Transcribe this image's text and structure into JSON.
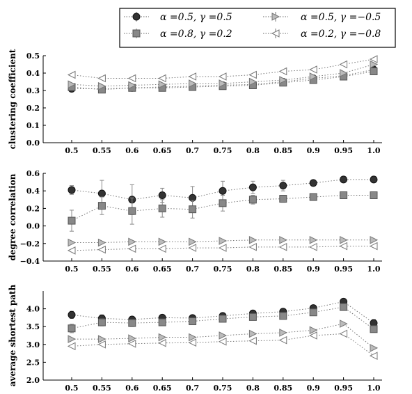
{
  "legend": {
    "entries": [
      {
        "label": "α =0.5,  γ =0.5",
        "series": 0
      },
      {
        "label": "α =0.5,  γ =−0.5",
        "series": 2
      },
      {
        "label": "α =0.8,  γ =0.2",
        "series": 1
      },
      {
        "label": "α =0.2,  γ =−0.8",
        "series": 3
      }
    ]
  },
  "series_styles": [
    {
      "marker": "circle",
      "fill": "#333333",
      "stroke": "#111111"
    },
    {
      "marker": "square",
      "fill": "#888888",
      "stroke": "#555555"
    },
    {
      "marker": "triangle-right",
      "fill": "#bbbbbb",
      "stroke": "#777777"
    },
    {
      "marker": "triangle-left",
      "fill": "#ffffff",
      "stroke": "#777777"
    }
  ],
  "chart_data": [
    {
      "type": "line",
      "ylabel": "clustering coefficient",
      "x": [
        0.5,
        0.55,
        0.6,
        0.65,
        0.7,
        0.75,
        0.8,
        0.85,
        0.9,
        0.95,
        1.0
      ],
      "x_tick_labels": [
        "0.5",
        "0.55",
        "0.6",
        "0.65",
        "0.7",
        "0.75",
        "0.8",
        "0.85",
        "0.9",
        "0.95",
        "1.0"
      ],
      "xlim": [
        0.5,
        1.0
      ],
      "ylim": [
        0.0,
        0.5
      ],
      "y_ticks": [
        0.0,
        0.1,
        0.2,
        0.3,
        0.4,
        0.5
      ],
      "y_tick_labels": [
        "0.0",
        "0.1",
        "0.2",
        "0.3",
        "0.4",
        "0.5"
      ],
      "grid": false,
      "series": [
        {
          "values": [
            0.31,
            0.31,
            0.315,
            0.32,
            0.325,
            0.33,
            0.335,
            0.35,
            0.37,
            0.385,
            0.42
          ],
          "errors": []
        },
        {
          "values": [
            0.32,
            0.305,
            0.315,
            0.315,
            0.32,
            0.325,
            0.33,
            0.345,
            0.36,
            0.38,
            0.41
          ],
          "errors": []
        },
        {
          "values": [
            0.335,
            0.325,
            0.33,
            0.335,
            0.34,
            0.34,
            0.35,
            0.36,
            0.38,
            0.4,
            0.45
          ],
          "errors": []
        },
        {
          "values": [
            0.39,
            0.37,
            0.37,
            0.37,
            0.38,
            0.38,
            0.39,
            0.41,
            0.42,
            0.45,
            0.48
          ],
          "errors": []
        }
      ]
    },
    {
      "type": "line",
      "ylabel": "degree correlation",
      "x": [
        0.5,
        0.55,
        0.6,
        0.65,
        0.7,
        0.75,
        0.8,
        0.85,
        0.9,
        0.95,
        1.0
      ],
      "x_tick_labels": [
        "0.5",
        "0.55",
        "0.6",
        "0.65",
        "0.7",
        "0.75",
        "0.8",
        "0.85",
        "0.9",
        "0.95",
        "1.0"
      ],
      "xlim": [
        0.5,
        1.0
      ],
      "ylim": [
        -0.4,
        0.6
      ],
      "y_ticks": [
        -0.4,
        -0.2,
        0.0,
        0.2,
        0.4,
        0.6
      ],
      "y_tick_labels": [
        "−0.4",
        "−0.2",
        "0.0",
        "0.2",
        "0.4",
        "0.6"
      ],
      "grid": false,
      "series": [
        {
          "values": [
            0.41,
            0.37,
            0.3,
            0.35,
            0.32,
            0.4,
            0.44,
            0.46,
            0.49,
            0.53,
            0.53
          ],
          "errors": [
            0.05,
            0.15,
            0.17,
            0.08,
            0.13,
            0.11,
            0.07,
            0.06,
            0.02,
            0.01,
            0.01
          ]
        },
        {
          "values": [
            0.06,
            0.23,
            0.17,
            0.2,
            0.19,
            0.26,
            0.3,
            0.31,
            0.33,
            0.35,
            0.35
          ],
          "errors": [
            0.12,
            0.1,
            0.15,
            0.1,
            0.1,
            0.09,
            0.05,
            0.04,
            0.02,
            0.02,
            0.01
          ]
        },
        {
          "values": [
            -0.19,
            -0.19,
            -0.18,
            -0.18,
            -0.18,
            -0.17,
            -0.16,
            -0.16,
            -0.16,
            -0.16,
            -0.16
          ],
          "errors": []
        },
        {
          "values": [
            -0.28,
            -0.27,
            -0.26,
            -0.26,
            -0.25,
            -0.25,
            -0.24,
            -0.24,
            -0.24,
            -0.23,
            -0.23
          ],
          "errors": []
        }
      ]
    },
    {
      "type": "line",
      "ylabel": "average shortest path",
      "x": [
        0.5,
        0.55,
        0.6,
        0.65,
        0.7,
        0.75,
        0.8,
        0.85,
        0.9,
        0.95,
        1.0
      ],
      "x_tick_labels": [
        "0.5",
        "0.55",
        "0.6",
        "0.65",
        "0.7",
        "0.75",
        "0.8",
        "0.85",
        "0.9",
        "0.95",
        "1.0"
      ],
      "xlim": [
        0.5,
        1.0
      ],
      "ylim": [
        2.0,
        4.5
      ],
      "y_ticks": [
        2.0,
        2.5,
        3.0,
        3.5,
        4.0
      ],
      "y_tick_labels": [
        "2.0",
        "2.5",
        "3.0",
        "3.5",
        "4.0"
      ],
      "grid": false,
      "series": [
        {
          "values": [
            3.83,
            3.73,
            3.7,
            3.75,
            3.74,
            3.8,
            3.87,
            3.92,
            4.02,
            4.2,
            3.6
          ],
          "errors": [
            0.1,
            0.1,
            0.08,
            0.08,
            0.07,
            0.06,
            0.05,
            0.05,
            0.06,
            0.05,
            0.1
          ]
        },
        {
          "values": [
            3.45,
            3.62,
            3.6,
            3.62,
            3.65,
            3.72,
            3.77,
            3.8,
            3.9,
            4.05,
            3.43
          ],
          "errors": [
            0.12,
            0.1,
            0.1,
            0.08,
            0.08,
            0.06,
            0.06,
            0.06,
            0.06,
            0.06,
            0.08
          ]
        },
        {
          "values": [
            3.15,
            3.15,
            3.17,
            3.2,
            3.2,
            3.25,
            3.3,
            3.33,
            3.4,
            3.58,
            2.9
          ],
          "errors": []
        },
        {
          "values": [
            2.95,
            3.0,
            3.02,
            3.04,
            3.05,
            3.08,
            3.1,
            3.12,
            3.25,
            3.3,
            2.68
          ],
          "errors": []
        }
      ]
    }
  ]
}
